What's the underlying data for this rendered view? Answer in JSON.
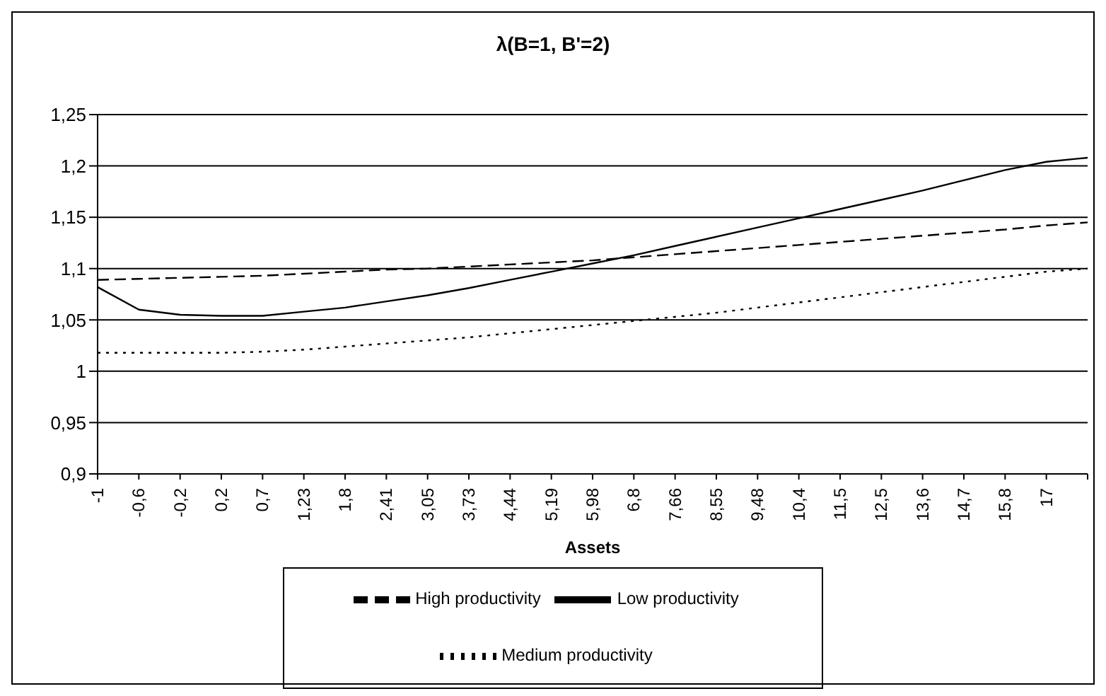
{
  "chart_data": {
    "type": "line",
    "title": "λ(B=1, B'=2)",
    "xlabel": "Assets",
    "categories": [
      "-1",
      "-0,6",
      "-0,2",
      "0,2",
      "0,7",
      "1,23",
      "1,8",
      "2,41",
      "3,05",
      "3,73",
      "4,44",
      "5,19",
      "5,98",
      "6,8",
      "7,66",
      "8,55",
      "9,48",
      "10,4",
      "11,5",
      "12,5",
      "13,6",
      "14,7",
      "15,8",
      "17",
      null
    ],
    "series": [
      {
        "name": "High productivity",
        "color": "#000000",
        "line_style": "dashed",
        "values": [
          1.089,
          1.09,
          1.091,
          1.092,
          1.093,
          1.095,
          1.097,
          1.099,
          1.1,
          1.102,
          1.104,
          1.106,
          1.108,
          1.111,
          1.114,
          1.117,
          1.12,
          1.123,
          1.126,
          1.129,
          1.132,
          1.135,
          1.138,
          1.142,
          1.145
        ]
      },
      {
        "name": "Medium productivity",
        "color": "#000000",
        "line_style": "dotted",
        "values": [
          1.018,
          1.018,
          1.018,
          1.018,
          1.019,
          1.021,
          1.024,
          1.027,
          1.03,
          1.033,
          1.037,
          1.041,
          1.045,
          1.049,
          1.053,
          1.057,
          1.062,
          1.067,
          1.072,
          1.077,
          1.082,
          1.087,
          1.092,
          1.097,
          1.1
        ]
      },
      {
        "name": "Low productivity",
        "color": "#000000",
        "line_style": "solid",
        "values": [
          1.082,
          1.06,
          1.055,
          1.054,
          1.054,
          1.058,
          1.062,
          1.068,
          1.074,
          1.081,
          1.089,
          1.097,
          1.105,
          1.113,
          1.122,
          1.131,
          1.14,
          1.149,
          1.158,
          1.167,
          1.176,
          1.186,
          1.196,
          1.204,
          1.208
        ]
      }
    ],
    "ylim": [
      0.9,
      1.25
    ],
    "yticks": [
      {
        "value": 0.9,
        "label": "0,9"
      },
      {
        "value": 0.95,
        "label": "0,95"
      },
      1,
      {
        "value": 1.05,
        "label": "1,05"
      },
      {
        "value": 1.1,
        "label": "1,1"
      },
      {
        "value": 1.15,
        "label": "1,15"
      },
      {
        "value": 1.2,
        "label": "1,2"
      },
      {
        "value": 1.25,
        "label": "1,25"
      }
    ],
    "grid": "y",
    "legend": "bottom",
    "marker": "none"
  }
}
